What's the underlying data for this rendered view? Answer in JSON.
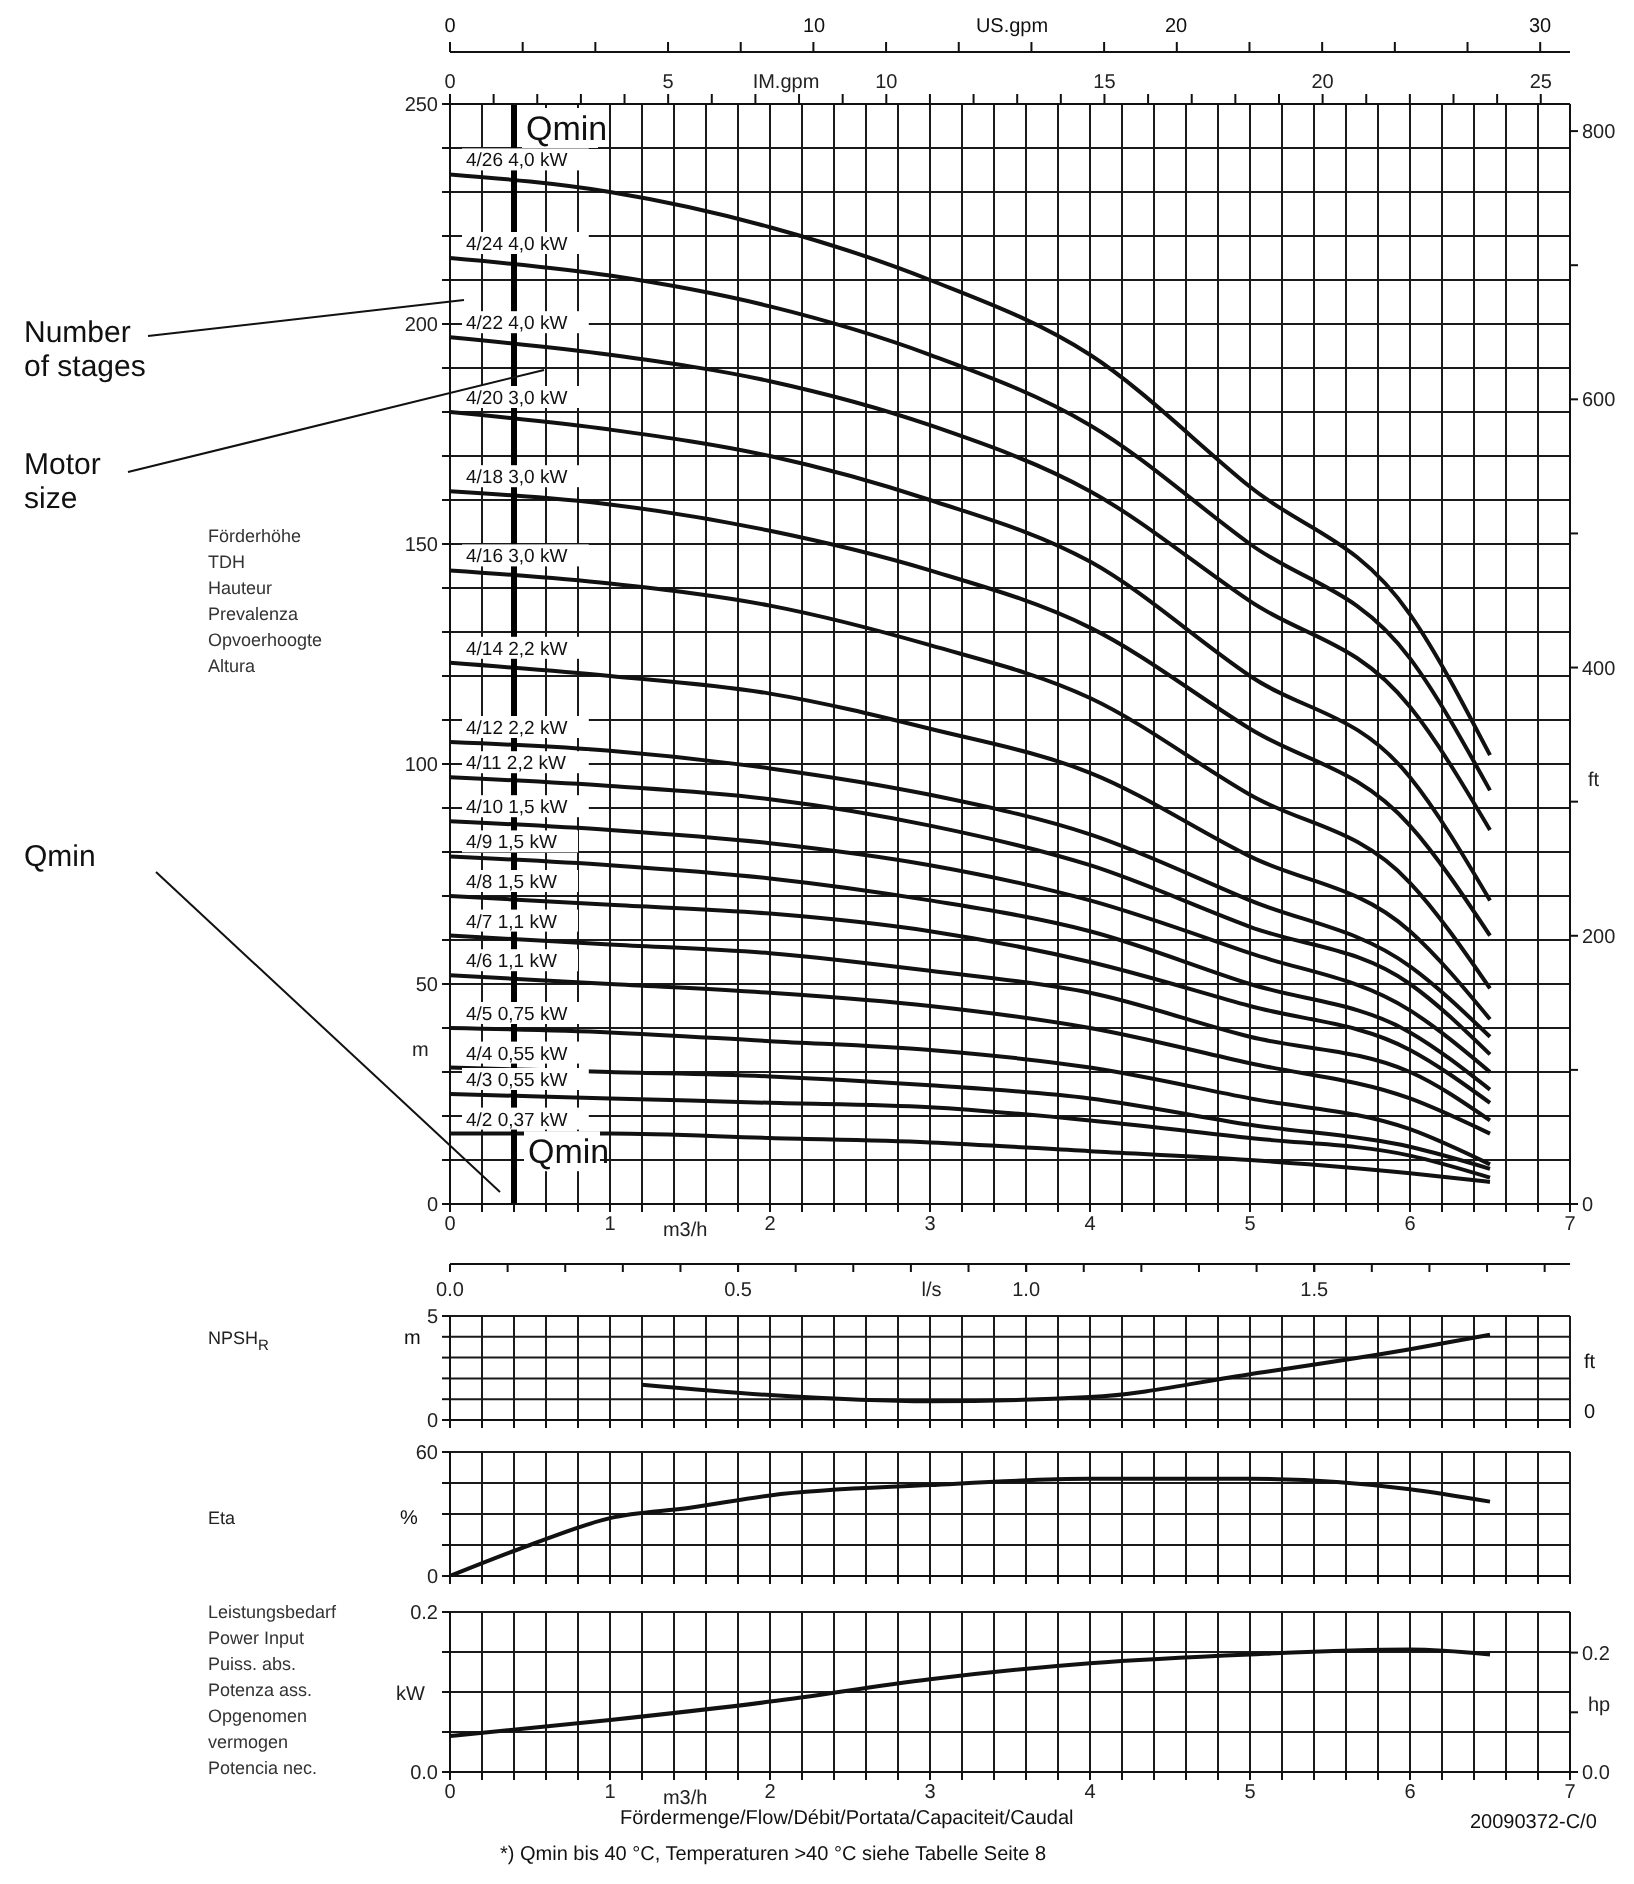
{
  "chart_data": [
    {
      "type": "line",
      "title": "Förderhöhe\nTDH\nHauteur\nPrevalenza\nOpvoerhoogte\nAltura",
      "ylabel": "m",
      "xlabel": "m3/h",
      "x2label": "IM.gpm",
      "y2label": "ft",
      "grid": true,
      "x": [
        0,
        1,
        2,
        3,
        4,
        5,
        6,
        6.5
      ],
      "xlim": [
        0,
        7
      ],
      "xticks": [
        0,
        {
          "value": 0.2,
          "label": null
        },
        {
          "value": 0.4,
          "label": null
        },
        {
          "value": 0.6,
          "label": null
        },
        {
          "value": 0.8,
          "label": null
        },
        1,
        {
          "value": 1.2,
          "label": null
        },
        {
          "value": 1.4,
          "label": null
        },
        {
          "value": 1.6,
          "label": null
        },
        {
          "value": 1.8,
          "label": null
        },
        2,
        {
          "value": 2.2,
          "label": null
        },
        {
          "value": 2.4,
          "label": null
        },
        {
          "value": 2.6,
          "label": null
        },
        {
          "value": 2.8,
          "label": null
        },
        3,
        {
          "value": 3.2,
          "label": null
        },
        {
          "value": 3.4,
          "label": null
        },
        {
          "value": 3.6,
          "label": null
        },
        {
          "value": 3.8,
          "label": null
        },
        4,
        {
          "value": 4.2,
          "label": null
        },
        {
          "value": 4.4,
          "label": null
        },
        {
          "value": 4.6,
          "label": null
        },
        {
          "value": 4.8,
          "label": null
        },
        5,
        {
          "value": 5.2,
          "label": null
        },
        {
          "value": 5.4,
          "label": null
        },
        {
          "value": 5.6,
          "label": null
        },
        {
          "value": 5.8,
          "label": null
        },
        6,
        {
          "value": 6.2,
          "label": null
        },
        {
          "value": 6.4,
          "label": null
        },
        {
          "value": 6.6,
          "label": null
        },
        {
          "value": 6.8,
          "label": null
        },
        7
      ],
      "ylim": [
        0,
        250
      ],
      "yticks": [
        0,
        {
          "value": 10,
          "label": null
        },
        {
          "value": 20,
          "label": null
        },
        {
          "value": 30,
          "label": null
        },
        {
          "value": 40,
          "label": null
        },
        50,
        {
          "value": 60,
          "label": null
        },
        {
          "value": 70,
          "label": null
        },
        {
          "value": 80,
          "label": null
        },
        {
          "value": 90,
          "label": null
        },
        100,
        {
          "value": 110,
          "label": null
        },
        {
          "value": 120,
          "label": null
        },
        {
          "value": 130,
          "label": null
        },
        {
          "value": 140,
          "label": null
        },
        150,
        {
          "value": 160,
          "label": null
        },
        {
          "value": 170,
          "label": null
        },
        {
          "value": 180,
          "label": null
        },
        {
          "value": 190,
          "label": null
        },
        200,
        {
          "value": 210,
          "label": null
        },
        {
          "value": 220,
          "label": null
        },
        {
          "value": 230,
          "label": null
        },
        {
          "value": 240,
          "label": null
        },
        250
      ],
      "x2lim": [
        0,
        25.67
      ],
      "x2ticks": [
        0,
        {
          "value": 1,
          "label": null
        },
        {
          "value": 2,
          "label": null
        },
        {
          "value": 3,
          "label": null
        },
        {
          "value": 4,
          "label": null
        },
        5,
        {
          "value": 6,
          "label": null
        },
        {
          "value": 7,
          "label": null
        },
        {
          "value": 8,
          "label": null
        },
        {
          "value": 9,
          "label": null
        },
        10,
        {
          "value": 11,
          "label": null
        },
        {
          "value": 12,
          "label": null
        },
        {
          "value": 13,
          "label": null
        },
        {
          "value": 14,
          "label": null
        },
        15,
        {
          "value": 16,
          "label": null
        },
        {
          "value": 17,
          "label": null
        },
        {
          "value": 18,
          "label": null
        },
        {
          "value": 19,
          "label": null
        },
        20,
        {
          "value": 21,
          "label": null
        },
        {
          "value": 22,
          "label": null
        },
        {
          "value": 23,
          "label": null
        },
        {
          "value": 24,
          "label": null
        },
        25
      ],
      "y2lim": [
        0,
        820.2
      ],
      "y2ticks": [
        0,
        {
          "value": 100,
          "label": null
        },
        200,
        {
          "value": 300,
          "label": null
        },
        400,
        {
          "value": 500,
          "label": null
        },
        600,
        {
          "value": 700,
          "label": null
        },
        800
      ],
      "ref_lines": [
        {
          "axis": "x",
          "value": 0.4,
          "label": "Qmin",
          "color": "#000000"
        }
      ],
      "annotations": [
        "Number of stages",
        "Motor size",
        "Qmin",
        "US.gpm",
        "0",
        "10",
        "20",
        "30",
        {
          "text": "Qmin",
          "x": 0.4,
          "y": 12
        }
      ],
      "series": [
        {
          "name": "4/26 4,0 kW",
          "color": "#111111",
          "values": [
            234,
            230,
            222,
            210,
            193,
            163,
            134,
            102
          ]
        },
        {
          "name": "4/24 4,0 kW",
          "color": "#111111",
          "values": [
            215,
            211,
            204,
            193,
            177,
            150,
            124,
            94
          ]
        },
        {
          "name": "4/22 4,0 kW",
          "color": "#111111",
          "values": [
            197,
            193,
            187,
            177,
            162,
            137,
            113,
            85
          ]
        },
        {
          "name": "4/20 3,0 kW",
          "color": "#111111",
          "values": [
            180,
            176,
            170,
            160,
            146,
            120,
            97,
            69
          ]
        },
        {
          "name": "4/18 3,0 kW",
          "color": "#111111",
          "values": [
            162,
            159,
            153,
            144,
            131,
            108,
            86,
            61
          ]
        },
        {
          "name": "4/16 3,0 kW",
          "color": "#111111",
          "values": [
            144,
            141,
            136,
            127,
            115,
            93,
            73,
            49
          ]
        },
        {
          "name": "4/14 2,2 kW",
          "color": "#111111",
          "values": [
            123,
            120,
            116,
            108,
            98,
            79,
            62,
            42
          ]
        },
        {
          "name": "4/12 2,2 kW",
          "color": "#111111",
          "values": [
            105,
            103,
            99,
            93,
            84,
            69,
            54,
            38
          ]
        },
        {
          "name": "4/11 2,2 kW",
          "color": "#111111",
          "values": [
            97,
            95,
            92,
            86,
            77,
            63,
            50,
            34
          ]
        },
        {
          "name": "4/10 1,5 kW",
          "color": "#111111",
          "values": [
            87,
            85,
            82,
            77,
            69,
            57,
            44,
            30
          ]
        },
        {
          "name": "4/9 1,5 kW",
          "color": "#111111",
          "values": [
            79,
            77,
            74,
            69,
            62,
            50,
            39,
            26
          ]
        },
        {
          "name": "4/8 1,5 kW",
          "color": "#111111",
          "values": [
            70,
            68,
            66,
            62,
            55,
            45,
            35,
            23
          ]
        },
        {
          "name": "4/7 1,1 kW",
          "color": "#111111",
          "values": [
            61,
            59,
            57,
            53,
            48,
            38,
            30,
            19
          ]
        },
        {
          "name": "4/6 1,1 kW",
          "color": "#111111",
          "values": [
            52,
            50,
            48,
            45,
            40,
            32,
            24,
            16
          ]
        },
        {
          "name": "4/5 0,75 kW",
          "color": "#111111",
          "values": [
            40,
            39,
            37,
            35,
            31,
            24,
            17,
            9
          ]
        },
        {
          "name": "4/4 0,55 kW",
          "color": "#111111",
          "values": [
            31,
            30,
            29,
            27,
            24,
            18,
            13,
            8
          ]
        },
        {
          "name": "4/3 0,55 kW",
          "color": "#111111",
          "values": [
            25,
            24,
            23,
            22,
            19,
            15,
            11,
            6
          ]
        },
        {
          "name": "4/2 0,37 kW",
          "color": "#111111",
          "values": [
            16,
            16,
            15,
            14,
            12,
            10,
            7,
            5
          ]
        }
      ]
    },
    {
      "type": "line",
      "ylabel": "NPSH$_{R}$",
      "x2label": "l/s",
      "grid": true,
      "tick_labels": "y",
      "annotations": [
        "m",
        "ft",
        "0"
      ],
      "xlim": [
        0,
        7
      ],
      "xticks": [
        {
          "value": 0,
          "label": null
        },
        {
          "value": 0.2,
          "label": null
        },
        {
          "value": 0.4,
          "label": null
        },
        {
          "value": 0.6,
          "label": null
        },
        {
          "value": 0.8,
          "label": null
        },
        {
          "value": 1,
          "label": null
        },
        {
          "value": 1.2,
          "label": null
        },
        {
          "value": 1.4,
          "label": null
        },
        {
          "value": 1.6,
          "label": null
        },
        {
          "value": 1.8,
          "label": null
        },
        {
          "value": 2,
          "label": null
        },
        {
          "value": 2.2,
          "label": null
        },
        {
          "value": 2.4,
          "label": null
        },
        {
          "value": 2.6,
          "label": null
        },
        {
          "value": 2.8,
          "label": null
        },
        {
          "value": 3,
          "label": null
        },
        {
          "value": 3.2,
          "label": null
        },
        {
          "value": 3.4,
          "label": null
        },
        {
          "value": 3.6,
          "label": null
        },
        {
          "value": 3.8,
          "label": null
        },
        {
          "value": 4,
          "label": null
        },
        {
          "value": 4.2,
          "label": null
        },
        {
          "value": 4.4,
          "label": null
        },
        {
          "value": 4.6,
          "label": null
        },
        {
          "value": 4.8,
          "label": null
        },
        {
          "value": 5,
          "label": null
        },
        {
          "value": 5.2,
          "label": null
        },
        {
          "value": 5.4,
          "label": null
        },
        {
          "value": 5.6,
          "label": null
        },
        {
          "value": 5.8,
          "label": null
        },
        {
          "value": 6,
          "label": null
        },
        {
          "value": 6.2,
          "label": null
        },
        {
          "value": 6.4,
          "label": null
        },
        {
          "value": 6.6,
          "label": null
        },
        {
          "value": 6.8,
          "label": null
        },
        {
          "value": 7,
          "label": null
        }
      ],
      "ylim": [
        0,
        5
      ],
      "yticks": [
        0,
        {
          "value": 1,
          "label": null
        },
        {
          "value": 2,
          "label": null
        },
        {
          "value": 3,
          "label": null
        },
        {
          "value": 4,
          "label": null
        },
        5
      ],
      "x2lim": [
        0,
        1.944
      ],
      "x2ticks": [
        {
          "value": 0,
          "label": "0.0"
        },
        0.5,
        {
          "value": 1,
          "label": "1.0"
        },
        1.5
      ],
      "series": [
        {
          "color": "#111111",
          "x": [
            1.2,
            2,
            3,
            4,
            5,
            6,
            6.5
          ],
          "values": [
            1.7,
            1.2,
            0.9,
            1.1,
            2.2,
            3.4,
            4.1
          ]
        }
      ]
    },
    {
      "type": "line",
      "ylabel": "Eta",
      "annotations": [
        "%"
      ],
      "grid": true,
      "tick_labels": "y",
      "xlim": [
        0,
        7
      ],
      "xticks": [
        {
          "value": 0,
          "label": null
        },
        {
          "value": 0.2,
          "label": null
        },
        {
          "value": 0.4,
          "label": null
        },
        {
          "value": 0.6,
          "label": null
        },
        {
          "value": 0.8,
          "label": null
        },
        {
          "value": 1,
          "label": null
        },
        {
          "value": 1.2,
          "label": null
        },
        {
          "value": 1.4,
          "label": null
        },
        {
          "value": 1.6,
          "label": null
        },
        {
          "value": 1.8,
          "label": null
        },
        {
          "value": 2,
          "label": null
        },
        {
          "value": 2.2,
          "label": null
        },
        {
          "value": 2.4,
          "label": null
        },
        {
          "value": 2.6,
          "label": null
        },
        {
          "value": 2.8,
          "label": null
        },
        {
          "value": 3,
          "label": null
        },
        {
          "value": 3.2,
          "label": null
        },
        {
          "value": 3.4,
          "label": null
        },
        {
          "value": 3.6,
          "label": null
        },
        {
          "value": 3.8,
          "label": null
        },
        {
          "value": 4,
          "label": null
        },
        {
          "value": 4.2,
          "label": null
        },
        {
          "value": 4.4,
          "label": null
        },
        {
          "value": 4.6,
          "label": null
        },
        {
          "value": 4.8,
          "label": null
        },
        {
          "value": 5,
          "label": null
        },
        {
          "value": 5.2,
          "label": null
        },
        {
          "value": 5.4,
          "label": null
        },
        {
          "value": 5.6,
          "label": null
        },
        {
          "value": 5.8,
          "label": null
        },
        {
          "value": 6,
          "label": null
        },
        {
          "value": 6.2,
          "label": null
        },
        {
          "value": 6.4,
          "label": null
        },
        {
          "value": 6.6,
          "label": null
        },
        {
          "value": 6.8,
          "label": null
        },
        {
          "value": 7,
          "label": null
        }
      ],
      "ylim": [
        0,
        60
      ],
      "yticks": [
        0,
        {
          "value": 15,
          "label": null
        },
        {
          "value": 30,
          "label": null
        },
        {
          "value": 45,
          "label": null
        },
        60
      ],
      "series": [
        {
          "color": "#111111",
          "x": [
            0,
            0.5,
            1,
            1.5,
            2,
            3,
            4,
            5,
            6,
            6.5
          ],
          "values": [
            0,
            15,
            28,
            33,
            39,
            44,
            47,
            47,
            42,
            36
          ]
        }
      ]
    },
    {
      "type": "line",
      "title": "Leistungsbedarf\nPower Input\nPuiss. abs.\nPotenza ass.\nOpgenomen\nvermogen\nPotencia nec.",
      "ylabel": "kW",
      "y2label": "hp",
      "xlabel": "m3/h",
      "grid": true,
      "xlim": [
        0,
        7
      ],
      "xticks": [
        0,
        {
          "value": 0.2,
          "label": null
        },
        {
          "value": 0.4,
          "label": null
        },
        {
          "value": 0.6,
          "label": null
        },
        {
          "value": 0.8,
          "label": null
        },
        1,
        {
          "value": 1.2,
          "label": null
        },
        {
          "value": 1.4,
          "label": null
        },
        {
          "value": 1.6,
          "label": null
        },
        {
          "value": 1.8,
          "label": null
        },
        2,
        {
          "value": 2.2,
          "label": null
        },
        {
          "value": 2.4,
          "label": null
        },
        {
          "value": 2.6,
          "label": null
        },
        {
          "value": 2.8,
          "label": null
        },
        3,
        {
          "value": 3.2,
          "label": null
        },
        {
          "value": 3.4,
          "label": null
        },
        {
          "value": 3.6,
          "label": null
        },
        {
          "value": 3.8,
          "label": null
        },
        4,
        {
          "value": 4.2,
          "label": null
        },
        {
          "value": 4.4,
          "label": null
        },
        {
          "value": 4.6,
          "label": null
        },
        {
          "value": 4.8,
          "label": null
        },
        5,
        {
          "value": 5.2,
          "label": null
        },
        {
          "value": 5.4,
          "label": null
        },
        {
          "value": 5.6,
          "label": null
        },
        {
          "value": 5.8,
          "label": null
        },
        6,
        {
          "value": 6.2,
          "label": null
        },
        {
          "value": 6.4,
          "label": null
        },
        {
          "value": 6.6,
          "label": null
        },
        {
          "value": 6.8,
          "label": null
        },
        7
      ],
      "ylim": [
        0,
        0.2
      ],
      "yticks": [
        {
          "value": 0,
          "label": "0.0"
        },
        {
          "value": 0.05,
          "label": null
        },
        {
          "value": 0.1,
          "label": null
        },
        {
          "value": 0.15,
          "label": null
        },
        {
          "value": 0.2,
          "label": "0.2"
        }
      ],
      "y2lim": [
        0,
        0.268
      ],
      "y2ticks": [
        {
          "value": 0,
          "label": "0.0"
        },
        {
          "value": 0.1,
          "label": null
        },
        {
          "value": 0.2,
          "label": "0.2"
        }
      ],
      "annotations": [
        "Fördermenge/Flow/Débit/Portata/Capaciteit/Caudal",
        "20090372-C/0",
        "*) Qmin bis 40 °C, Temperaturen >40 °C siehe Tabelle Seite 8"
      ],
      "series": [
        {
          "color": "#111111",
          "x": [
            0,
            1,
            2,
            3,
            4,
            5,
            6,
            6.5
          ],
          "values": [
            0.045,
            0.065,
            0.088,
            0.116,
            0.136,
            0.147,
            0.153,
            0.147
          ]
        }
      ]
    }
  ]
}
